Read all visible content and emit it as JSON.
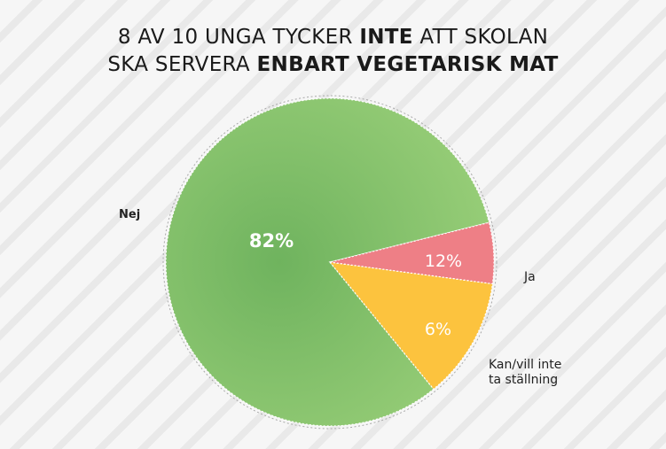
{
  "title": {
    "line1_pre": "8 AV 10 UNGA TYCKER ",
    "line1_bold": "INTE",
    "line1_post": " ATT SKOLAN",
    "line2_pre": "SKA SERVERA ",
    "line2_bold": "ENBART VEGETARISK MAT"
  },
  "chart_data": {
    "type": "pie",
    "title": "8 AV 10 UNGA TYCKER INTE ATT SKOLAN SKA SERVERA ENBART VEGETARISK MAT",
    "unit": "%",
    "slices": [
      {
        "label": "Nej",
        "value": 82,
        "value_label": "82%",
        "color": "#79bb67",
        "color_light": "#9bd07a"
      },
      {
        "label": "Ja",
        "value": 12,
        "value_label": "12%",
        "color": "#fcc33e",
        "color_light": "#fcc33e"
      },
      {
        "label": "Kan/vill inte ta ställning",
        "value": 6,
        "value_label": "6%",
        "color": "#ee7f86",
        "color_light": "#ee7f86"
      }
    ],
    "legend": "labels outside slices"
  }
}
